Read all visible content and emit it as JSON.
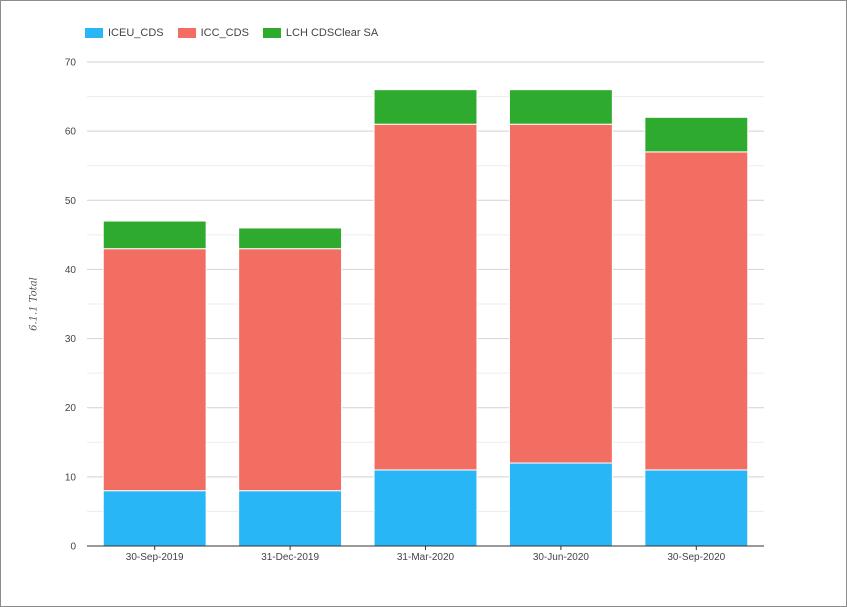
{
  "chart_data": {
    "type": "bar",
    "stacked": true,
    "categories": [
      "30-Sep-2019",
      "31-Dec-2019",
      "31-Mar-2020",
      "30-Jun-2020",
      "30-Sep-2020"
    ],
    "series": [
      {
        "name": "ICEU_CDS",
        "color": "#29b6f6",
        "values": [
          8,
          8,
          11,
          12,
          11
        ]
      },
      {
        "name": "ICC_CDS",
        "color": "#f26e62",
        "values": [
          35,
          35,
          50,
          49,
          46
        ]
      },
      {
        "name": "LCH CDSClear SA",
        "color": "#2eab2e",
        "values": [
          4,
          3,
          5,
          5,
          5
        ]
      }
    ],
    "xlabel": "",
    "ylabel": "6.1.1 Total",
    "ylim": [
      0,
      70
    ],
    "yticks": [
      0,
      10,
      20,
      30,
      40,
      50,
      60,
      70
    ],
    "grid": true,
    "legend_position": "top-left"
  }
}
